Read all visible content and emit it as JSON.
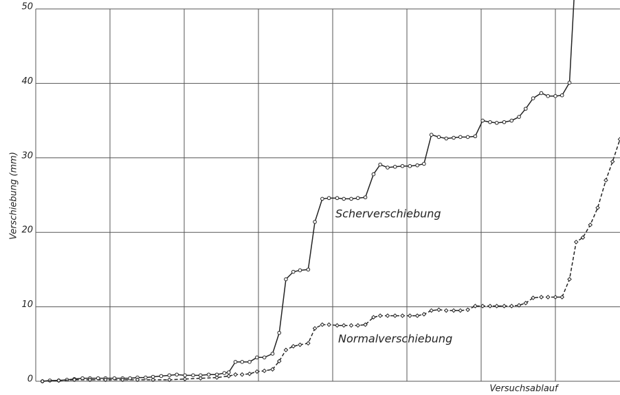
{
  "chart_data": {
    "type": "line",
    "xlabel": "Versuchsablauf",
    "ylabel": "Verschiebung (mm)",
    "xlim": [
      0,
      7.87
    ],
    "xticks": [
      0,
      1,
      2,
      3,
      4,
      5,
      6,
      7
    ],
    "ylim": [
      0,
      50
    ],
    "yticks": [
      0,
      10,
      20,
      30,
      40,
      50
    ],
    "grid": true,
    "series": [
      {
        "name": "Scherverschiebung",
        "color": "#222222",
        "linestyle": "solid",
        "marker": "circle",
        "x": [
          0.09,
          0.19,
          0.31,
          0.42,
          0.52,
          0.63,
          0.73,
          0.84,
          0.94,
          1.06,
          1.17,
          1.27,
          1.37,
          1.48,
          1.58,
          1.69,
          1.8,
          1.9,
          2.01,
          2.12,
          2.22,
          2.33,
          2.44,
          2.54,
          2.6,
          2.69,
          2.78,
          2.88,
          2.98,
          3.08,
          3.19,
          3.28,
          3.37,
          3.47,
          3.56,
          3.67,
          3.76,
          3.86,
          3.95,
          4.06,
          4.15,
          4.25,
          4.34,
          4.44,
          4.55,
          4.64,
          4.74,
          4.84,
          4.94,
          5.04,
          5.14,
          5.23,
          5.33,
          5.43,
          5.53,
          5.63,
          5.72,
          5.82,
          5.92,
          6.02,
          6.12,
          6.21,
          6.31,
          6.41,
          6.51,
          6.6,
          6.7,
          6.81,
          6.9,
          7.0,
          7.09,
          7.19,
          7.26
        ],
        "values": [
          0,
          0.1,
          0.1,
          0.2,
          0.3,
          0.4,
          0.4,
          0.4,
          0.4,
          0.4,
          0.4,
          0.4,
          0.5,
          0.5,
          0.6,
          0.7,
          0.8,
          0.9,
          0.8,
          0.8,
          0.8,
          0.9,
          0.9,
          1.1,
          1.2,
          2.6,
          2.6,
          2.6,
          3.2,
          3.2,
          3.7,
          6.5,
          13.7,
          14.7,
          14.9,
          15.0,
          21.4,
          24.5,
          24.6,
          24.6,
          24.5,
          24.5,
          24.6,
          24.7,
          27.8,
          29.1,
          28.7,
          28.8,
          28.9,
          28.9,
          29.0,
          29.2,
          33.1,
          32.8,
          32.6,
          32.7,
          32.8,
          32.8,
          32.9,
          35.0,
          34.8,
          34.7,
          34.8,
          35.0,
          35.5,
          36.6,
          38.0,
          38.7,
          38.3,
          38.3,
          38.4,
          40.1,
          53
        ]
      },
      {
        "name": "Normalverschiebung",
        "color": "#222222",
        "linestyle": "dashed",
        "marker": "diamond",
        "x": [
          0.09,
          0.31,
          0.52,
          0.73,
          0.94,
          1.17,
          1.37,
          1.58,
          1.8,
          2.01,
          2.22,
          2.44,
          2.6,
          2.69,
          2.78,
          2.88,
          2.98,
          3.08,
          3.19,
          3.28,
          3.37,
          3.47,
          3.56,
          3.67,
          3.76,
          3.86,
          3.95,
          4.06,
          4.15,
          4.25,
          4.34,
          4.44,
          4.55,
          4.64,
          4.74,
          4.84,
          4.94,
          5.04,
          5.14,
          5.23,
          5.33,
          5.43,
          5.53,
          5.63,
          5.72,
          5.82,
          5.92,
          6.02,
          6.12,
          6.21,
          6.31,
          6.41,
          6.51,
          6.6,
          6.7,
          6.81,
          6.9,
          7.0,
          7.09,
          7.19,
          7.28,
          7.37,
          7.47,
          7.57,
          7.68,
          7.77,
          7.87
        ],
        "values": [
          0,
          0.1,
          0.2,
          0.2,
          0.2,
          0.2,
          0.2,
          0.2,
          0.2,
          0.3,
          0.4,
          0.5,
          0.7,
          0.9,
          0.9,
          1.0,
          1.3,
          1.4,
          1.6,
          2.7,
          4.2,
          4.7,
          4.9,
          5.1,
          7.1,
          7.6,
          7.6,
          7.5,
          7.5,
          7.5,
          7.5,
          7.6,
          8.6,
          8.8,
          8.8,
          8.8,
          8.8,
          8.8,
          8.8,
          9.0,
          9.5,
          9.6,
          9.5,
          9.5,
          9.5,
          9.6,
          10.1,
          10.1,
          10.1,
          10.1,
          10.1,
          10.1,
          10.2,
          10.5,
          11.2,
          11.3,
          11.3,
          11.3,
          11.3,
          13.7,
          18.7,
          19.3,
          21.0,
          23.3,
          27.0,
          29.5,
          32.5
        ]
      }
    ]
  }
}
